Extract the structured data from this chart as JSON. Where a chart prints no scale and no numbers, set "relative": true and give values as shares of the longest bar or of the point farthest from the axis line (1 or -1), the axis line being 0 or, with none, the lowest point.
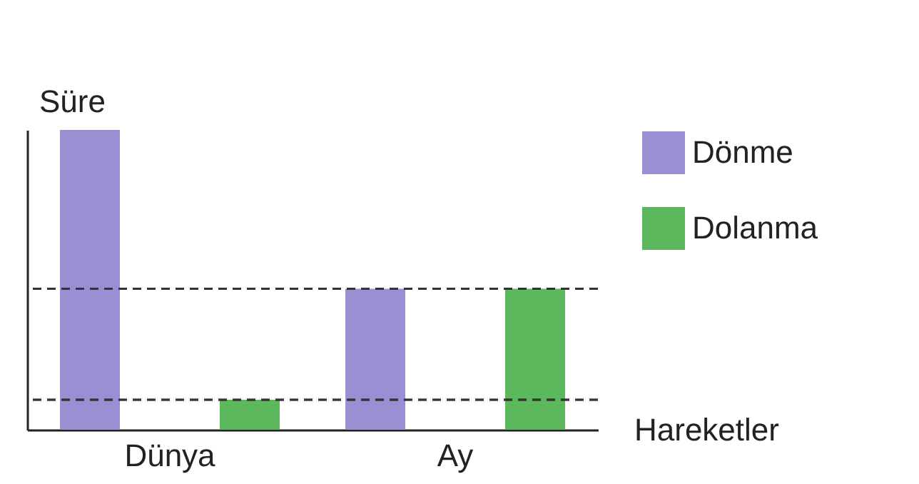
{
  "chart_data": {
    "type": "bar",
    "relative": true,
    "xlabel": "Hareketler",
    "ylabel": "Süre",
    "categories": [
      "Dünya",
      "Ay"
    ],
    "series": [
      {
        "name": "Dönme",
        "color": "#9b8fd3",
        "values": [
          1,
          0.47
        ]
      },
      {
        "name": "Dolanma",
        "color": "#5cb85c",
        "values": [
          0.1,
          0.47
        ]
      }
    ],
    "ref_lines": [
      {
        "axis": "y",
        "value": 0.47,
        "color": "#333333",
        "line_style": "dashed"
      },
      {
        "axis": "y",
        "value": 0.1,
        "color": "#333333",
        "line_style": "dashed"
      }
    ],
    "legend": "top right",
    "grid": false
  }
}
